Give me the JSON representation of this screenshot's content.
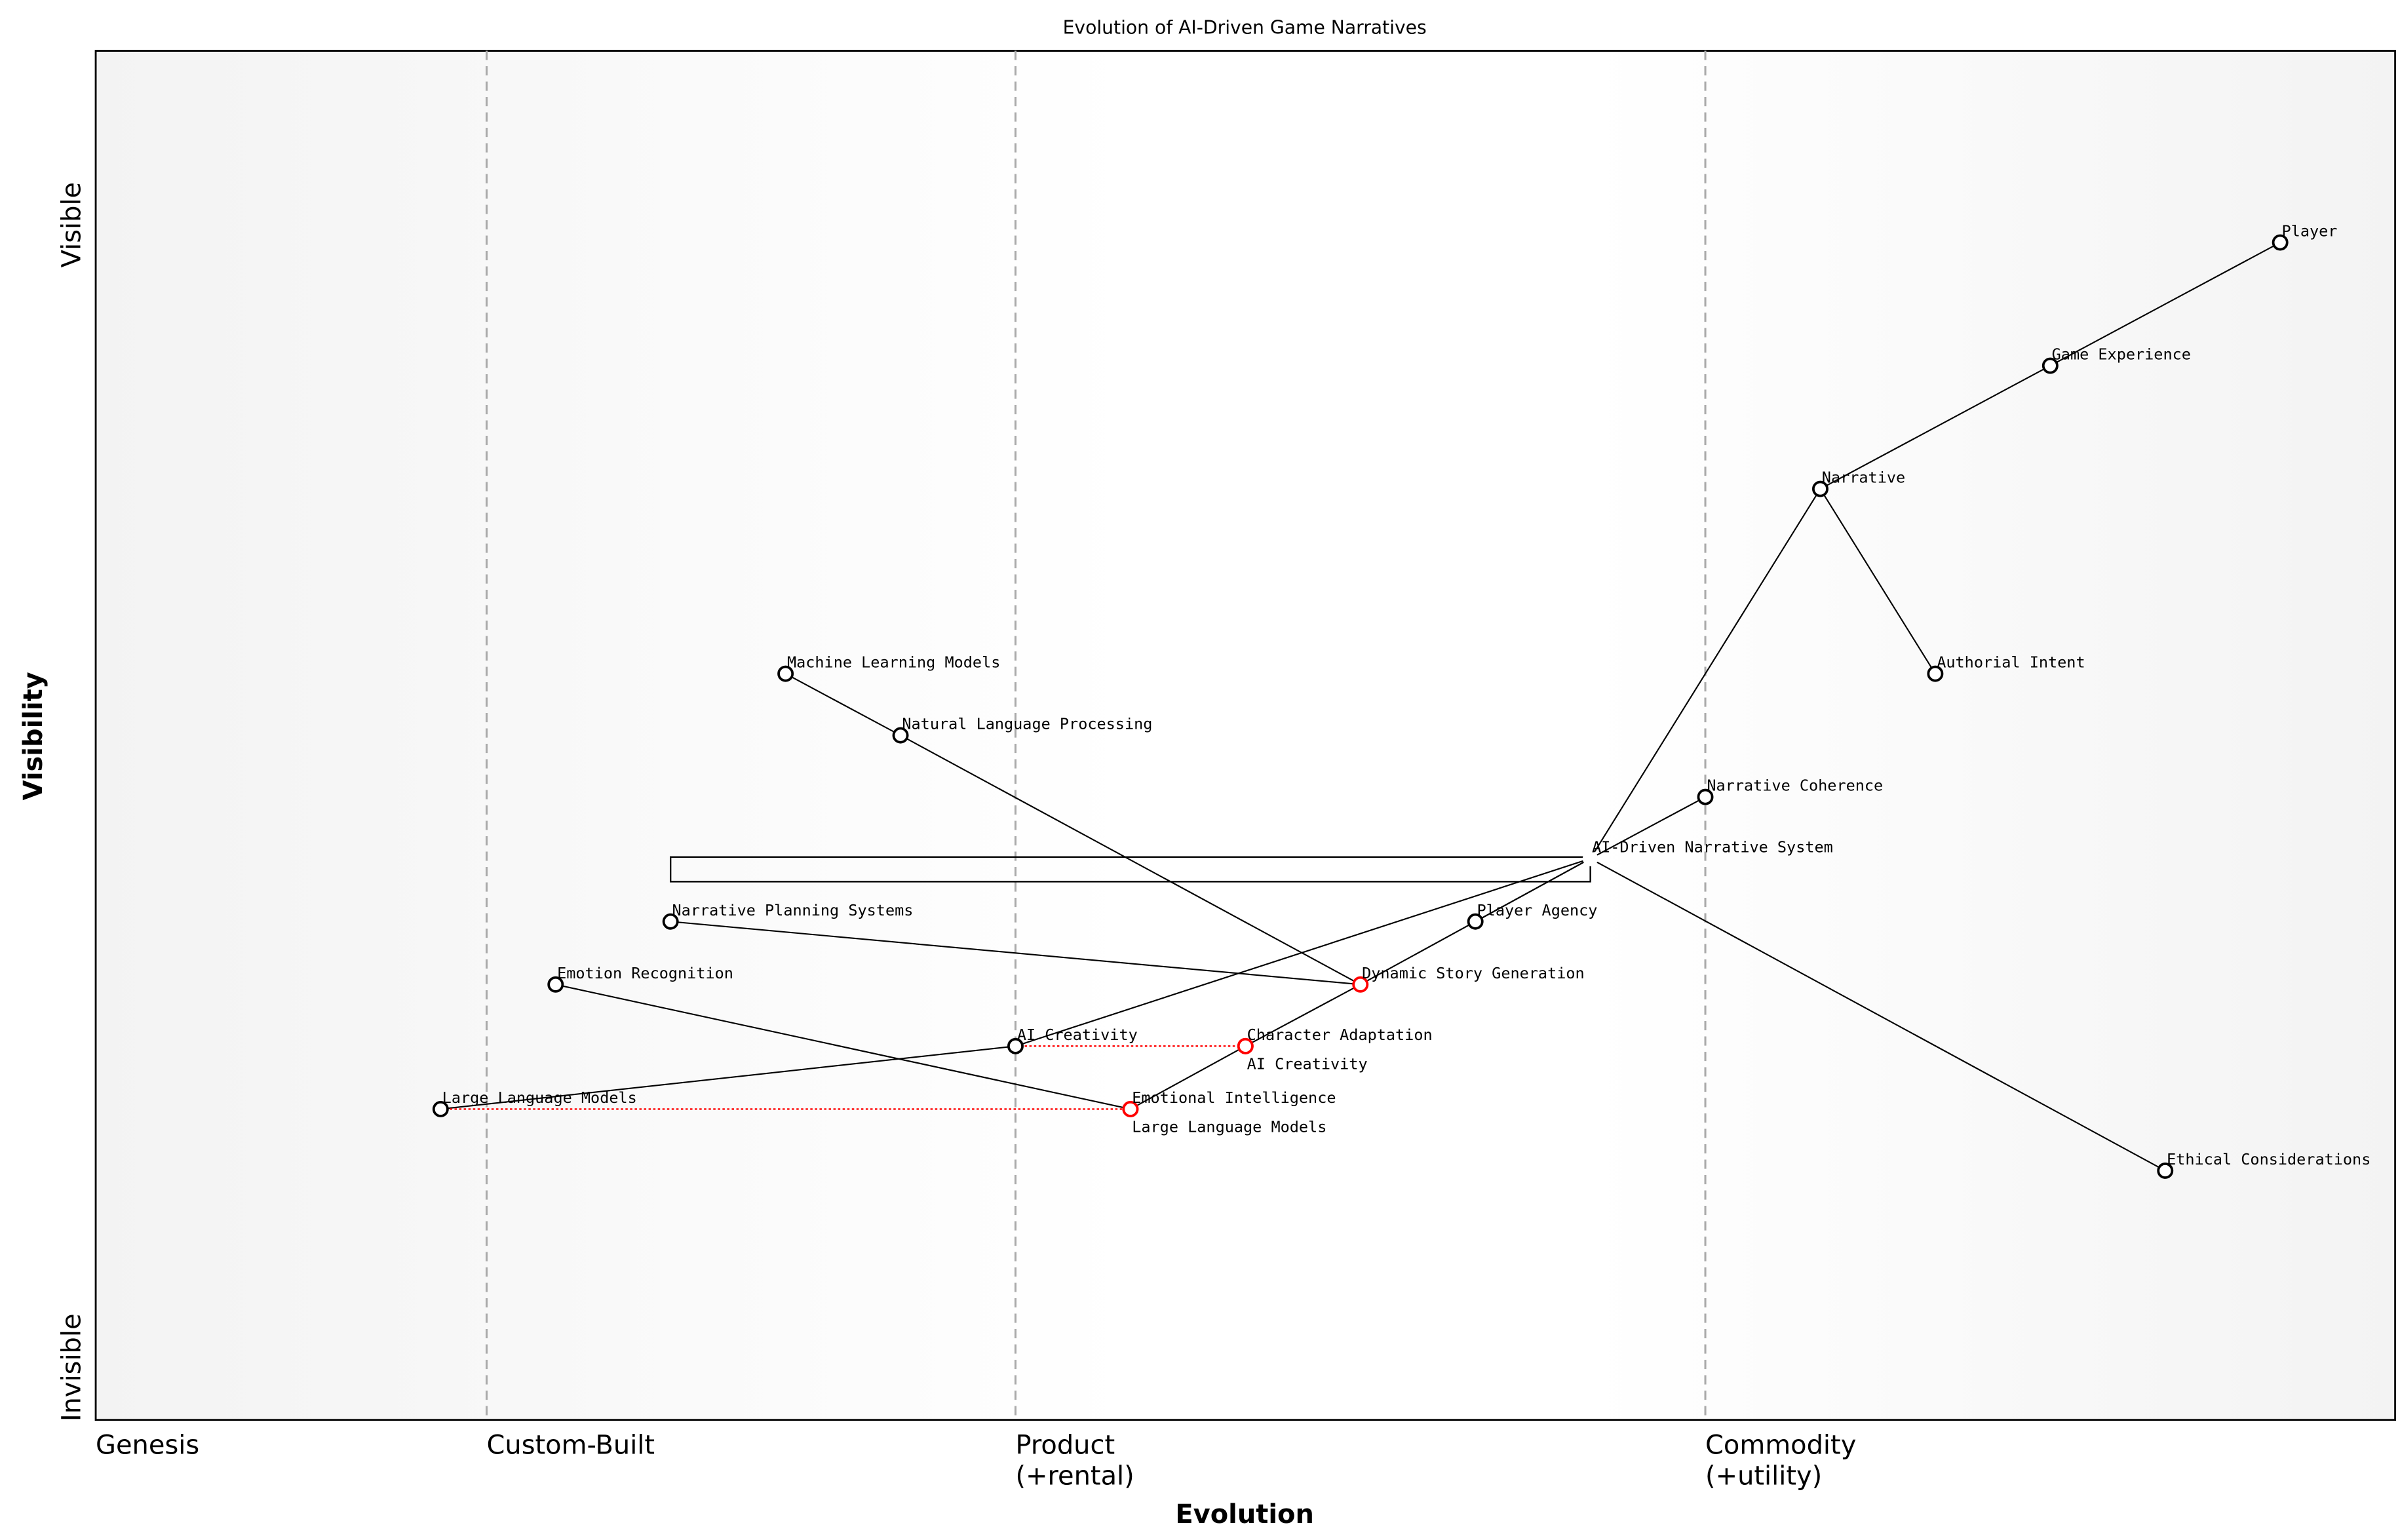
{
  "chart_data": {
    "type": "wardley-map",
    "title": "Evolution of AI-Driven Game Narratives",
    "xlabel": "Evolution",
    "ylabel": "Visibility",
    "y_ticks": {
      "top": "Visible",
      "bottom": "Invisible"
    },
    "stages": [
      {
        "label": "Genesis",
        "line2": "",
        "at": 0.0
      },
      {
        "label": "Custom-Built",
        "line2": "",
        "at": 0.17
      },
      {
        "label": "Product",
        "line2": "(+rental)",
        "at": 0.4
      },
      {
        "label": "Commodity",
        "line2": "(+utility)",
        "at": 0.7
      }
    ],
    "components": [
      {
        "name": "Player",
        "evolution": 0.95,
        "visibility": 0.86,
        "evolved": false
      },
      {
        "name": "Game Experience",
        "evolution": 0.85,
        "visibility": 0.77,
        "evolved": false
      },
      {
        "name": "Narrative",
        "evolution": 0.75,
        "visibility": 0.68,
        "evolved": false
      },
      {
        "name": "Authorial Intent",
        "evolution": 0.8,
        "visibility": 0.545,
        "evolved": false
      },
      {
        "name": "Narrative Coherence",
        "evolution": 0.7,
        "visibility": 0.455,
        "evolved": false
      },
      {
        "name": "AI-Driven Narrative System",
        "evolution": 0.65,
        "visibility": 0.41,
        "evolved": false,
        "hidden": true
      },
      {
        "name": "Player Agency",
        "evolution": 0.6,
        "visibility": 0.364,
        "evolved": false
      },
      {
        "name": "Dynamic Story Generation",
        "evolution": 0.55,
        "visibility": 0.318,
        "evolved": true
      },
      {
        "name": "Character Adaptation",
        "evolution": 0.5,
        "visibility": 0.273,
        "evolved": true
      },
      {
        "name": "AI Creativity",
        "evolution": 0.4,
        "visibility": 0.273,
        "evolved": false
      },
      {
        "name": "AI Creativity",
        "evolution": 0.5,
        "visibility": 0.273,
        "evolved": true
      },
      {
        "name": "Emotional Intelligence",
        "evolution": 0.45,
        "visibility": 0.227,
        "evolved": true
      },
      {
        "name": "Large Language Models",
        "evolution": 0.15,
        "visibility": 0.227,
        "evolved": false
      },
      {
        "name": "Large Language Models",
        "evolution": 0.45,
        "visibility": 0.227,
        "evolved": true
      },
      {
        "name": "Machine Learning Models",
        "evolution": 0.3,
        "visibility": 0.545,
        "evolved": false
      },
      {
        "name": "Natural Language Processing",
        "evolution": 0.35,
        "visibility": 0.5,
        "evolved": false
      },
      {
        "name": "Narrative Planning Systems",
        "evolution": 0.25,
        "visibility": 0.364,
        "evolved": false
      },
      {
        "name": "Emotion Recognition",
        "evolution": 0.2,
        "visibility": 0.318,
        "evolved": false
      },
      {
        "name": "Ethical Considerations",
        "evolution": 0.9,
        "visibility": 0.182,
        "evolved": false
      }
    ],
    "links": [
      [
        "Player",
        "Game Experience"
      ],
      [
        "Game Experience",
        "Narrative"
      ],
      [
        "Narrative",
        "Authorial Intent"
      ],
      [
        "Narrative",
        "AI-Driven Narrative System"
      ],
      [
        "AI-Driven Narrative System",
        "Narrative Coherence"
      ],
      [
        "AI-Driven Narrative System",
        "Ethical Considerations"
      ],
      [
        "AI-Driven Narrative System",
        "Player Agency"
      ],
      [
        "AI-Driven Narrative System",
        "Dynamic Story Generation"
      ],
      [
        "Dynamic Story Generation",
        "Character Adaptation"
      ],
      [
        "Character Adaptation",
        "Emotional Intelligence"
      ],
      [
        "AI-Driven Narrative System",
        "AI Creativity"
      ],
      [
        "AI Creativity",
        "Large Language Models"
      ],
      [
        "Machine Learning Models",
        "Natural Language Processing"
      ],
      [
        "Natural Language Processing",
        "Dynamic Story Generation"
      ],
      [
        "Narrative Planning Systems",
        "Dynamic Story Generation"
      ],
      [
        "Emotion Recognition",
        "Emotional Intelligence"
      ]
    ],
    "evolve_links": [
      {
        "from": [
          0.4,
          0.273
        ],
        "to": [
          0.5,
          0.273
        ]
      },
      {
        "from": [
          0.15,
          0.227
        ],
        "to": [
          0.45,
          0.227
        ]
      }
    ],
    "pipeline": {
      "evolution_start": 0.25,
      "evolution_end": 0.65,
      "visibility": 0.41
    }
  }
}
